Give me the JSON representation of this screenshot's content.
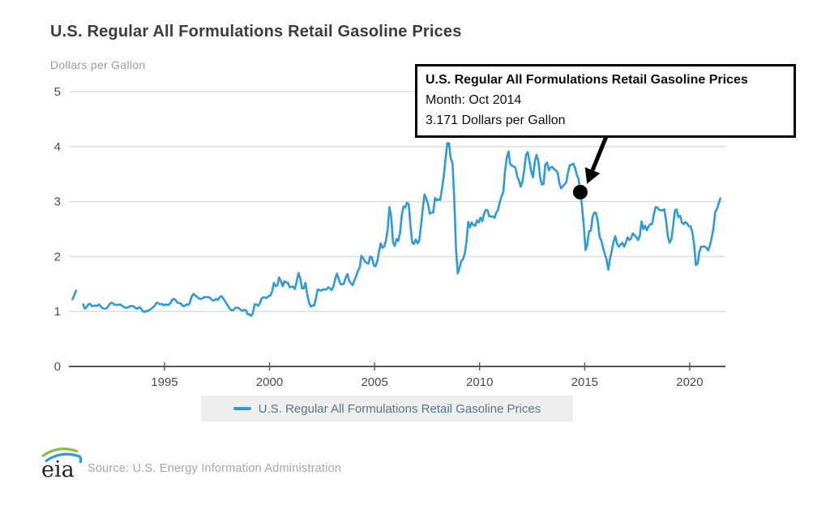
{
  "header": {
    "title": "U.S. Regular All Formulations Retail Gasoline Prices"
  },
  "tooltip": {
    "title": "U.S. Regular All Formulations Retail Gasoline Prices",
    "month_line": "Month: Oct 2014",
    "value_line": "3.171 Dollars per Gallon"
  },
  "legend": {
    "label": "U.S. Regular All Formulations Retail Gasoline Prices"
  },
  "footer": {
    "logo_text": "eia",
    "source": "Source: U.S. Energy Information Administration"
  },
  "chart_data": {
    "type": "line",
    "title": "U.S. Regular All Formulations Retail Gasoline Prices",
    "xlabel": "",
    "ylabel": "Dollars per Gallon",
    "ylim": [
      0,
      5
    ],
    "y_ticks": [
      0,
      1,
      2,
      3,
      4,
      5
    ],
    "x_ticks": [
      1995,
      2000,
      2005,
      2010,
      2015,
      2020
    ],
    "xlim_years": [
      1990.45,
      2021.7
    ],
    "grid": "horizontal",
    "legend_position": "bottom",
    "line_color": "#2d9bd7",
    "highlight": {
      "month": "Oct 2014",
      "value": 3.171,
      "index": 290,
      "marker_color": "#000000"
    },
    "series": [
      {
        "name": "U.S. Regular All Formulations Retail Gasoline Prices",
        "color": "#2d9bd7",
        "frequency": "monthly",
        "start_year": 1990,
        "start_month": 8,
        "values": [
          1.22,
          1.3,
          1.38,
          null,
          null,
          null,
          1.13,
          1.05,
          1.08,
          1.13,
          1.14,
          1.1,
          1.1,
          1.11,
          1.1,
          1.13,
          1.1,
          1.06,
          1.05,
          1.05,
          1.08,
          1.13,
          1.16,
          1.15,
          1.12,
          1.12,
          1.12,
          1.13,
          1.11,
          1.09,
          1.07,
          1.07,
          1.08,
          1.1,
          1.1,
          1.09,
          1.06,
          1.05,
          1.08,
          1.06,
          1.01,
          0.99,
          1.01,
          1.01,
          1.03,
          1.05,
          1.08,
          1.11,
          1.16,
          1.15,
          1.13,
          1.14,
          1.11,
          1.13,
          1.12,
          1.12,
          1.16,
          1.22,
          1.23,
          1.2,
          1.16,
          1.15,
          1.14,
          1.1,
          1.1,
          1.13,
          1.12,
          1.16,
          1.27,
          1.32,
          1.29,
          1.27,
          1.24,
          1.23,
          1.23,
          1.26,
          1.26,
          1.26,
          1.26,
          1.23,
          1.2,
          1.2,
          1.23,
          1.21,
          1.26,
          1.28,
          1.24,
          1.19,
          1.14,
          1.09,
          1.04,
          1.02,
          1.03,
          1.07,
          1.07,
          1.06,
          1.03,
          1.01,
          1.03,
          1.02,
          0.95,
          0.95,
          0.92,
          0.97,
          1.13,
          1.13,
          1.1,
          1.15,
          1.24,
          1.26,
          1.25,
          1.25,
          1.28,
          1.29,
          1.37,
          1.52,
          1.46,
          1.48,
          1.62,
          1.55,
          1.46,
          1.55,
          1.53,
          1.52,
          1.44,
          1.45,
          1.45,
          1.41,
          1.55,
          1.7,
          1.61,
          1.42,
          1.42,
          1.52,
          1.32,
          1.17,
          1.09,
          1.11,
          1.11,
          1.24,
          1.4,
          1.39,
          1.38,
          1.4,
          1.4,
          1.4,
          1.44,
          1.42,
          1.39,
          1.46,
          1.59,
          1.69,
          1.59,
          1.5,
          1.49,
          1.51,
          1.62,
          1.68,
          1.56,
          1.51,
          1.48,
          1.57,
          1.65,
          1.74,
          1.8,
          2.01,
          1.97,
          1.91,
          1.88,
          1.87,
          2.0,
          1.98,
          1.84,
          1.82,
          1.91,
          2.08,
          2.24,
          2.16,
          2.18,
          2.29,
          2.49,
          2.9,
          2.72,
          2.26,
          2.19,
          2.32,
          2.28,
          2.43,
          2.74,
          2.91,
          2.89,
          2.98,
          2.95,
          2.56,
          2.25,
          2.23,
          2.31,
          2.24,
          2.28,
          2.56,
          2.86,
          3.13,
          3.05,
          2.96,
          2.78,
          2.8,
          2.8,
          3.07,
          3.02,
          3.04,
          3.03,
          3.24,
          3.46,
          3.76,
          4.06,
          4.06,
          3.78,
          3.7,
          3.05,
          2.15,
          1.69,
          1.79,
          1.92,
          1.95,
          2.05,
          2.27,
          2.63,
          2.53,
          2.62,
          2.57,
          2.56,
          2.66,
          2.62,
          2.71,
          2.64,
          2.77,
          2.85,
          2.84,
          2.73,
          2.73,
          2.73,
          2.7,
          2.8,
          2.85,
          2.99,
          3.09,
          3.17,
          3.56,
          3.8,
          3.91,
          3.68,
          3.65,
          3.64,
          3.61,
          3.45,
          3.38,
          3.27,
          3.38,
          3.58,
          3.85,
          3.9,
          3.73,
          3.54,
          3.44,
          3.72,
          3.85,
          3.75,
          3.45,
          3.31,
          3.32,
          3.67,
          3.71,
          3.57,
          3.62,
          3.63,
          3.59,
          3.57,
          3.53,
          3.34,
          3.24,
          3.28,
          3.31,
          3.36,
          3.53,
          3.66,
          3.67,
          3.69,
          3.61,
          3.49,
          3.41,
          3.171,
          2.91,
          2.54,
          2.12,
          2.22,
          2.46,
          2.47,
          2.72,
          2.8,
          2.79,
          2.64,
          2.36,
          2.29,
          2.16,
          2.04,
          1.95,
          1.76,
          1.97,
          2.11,
          2.27,
          2.37,
          2.23,
          2.18,
          2.22,
          2.25,
          2.18,
          2.25,
          2.35,
          2.3,
          2.33,
          2.42,
          2.39,
          2.35,
          2.3,
          2.38,
          2.64,
          2.5,
          2.56,
          2.48,
          2.55,
          2.59,
          2.59,
          2.76,
          2.9,
          2.89,
          2.85,
          2.84,
          2.84,
          2.86,
          2.65,
          2.37,
          2.25,
          2.31,
          2.55,
          2.83,
          2.86,
          2.72,
          2.74,
          2.62,
          2.59,
          2.63,
          2.6,
          2.55,
          2.55,
          2.44,
          2.23,
          1.84,
          1.87,
          2.08,
          2.18,
          2.18,
          2.18,
          2.16,
          2.11,
          2.2,
          2.33,
          2.5,
          2.81,
          2.86,
          2.96,
          3.06
        ]
      }
    ]
  }
}
